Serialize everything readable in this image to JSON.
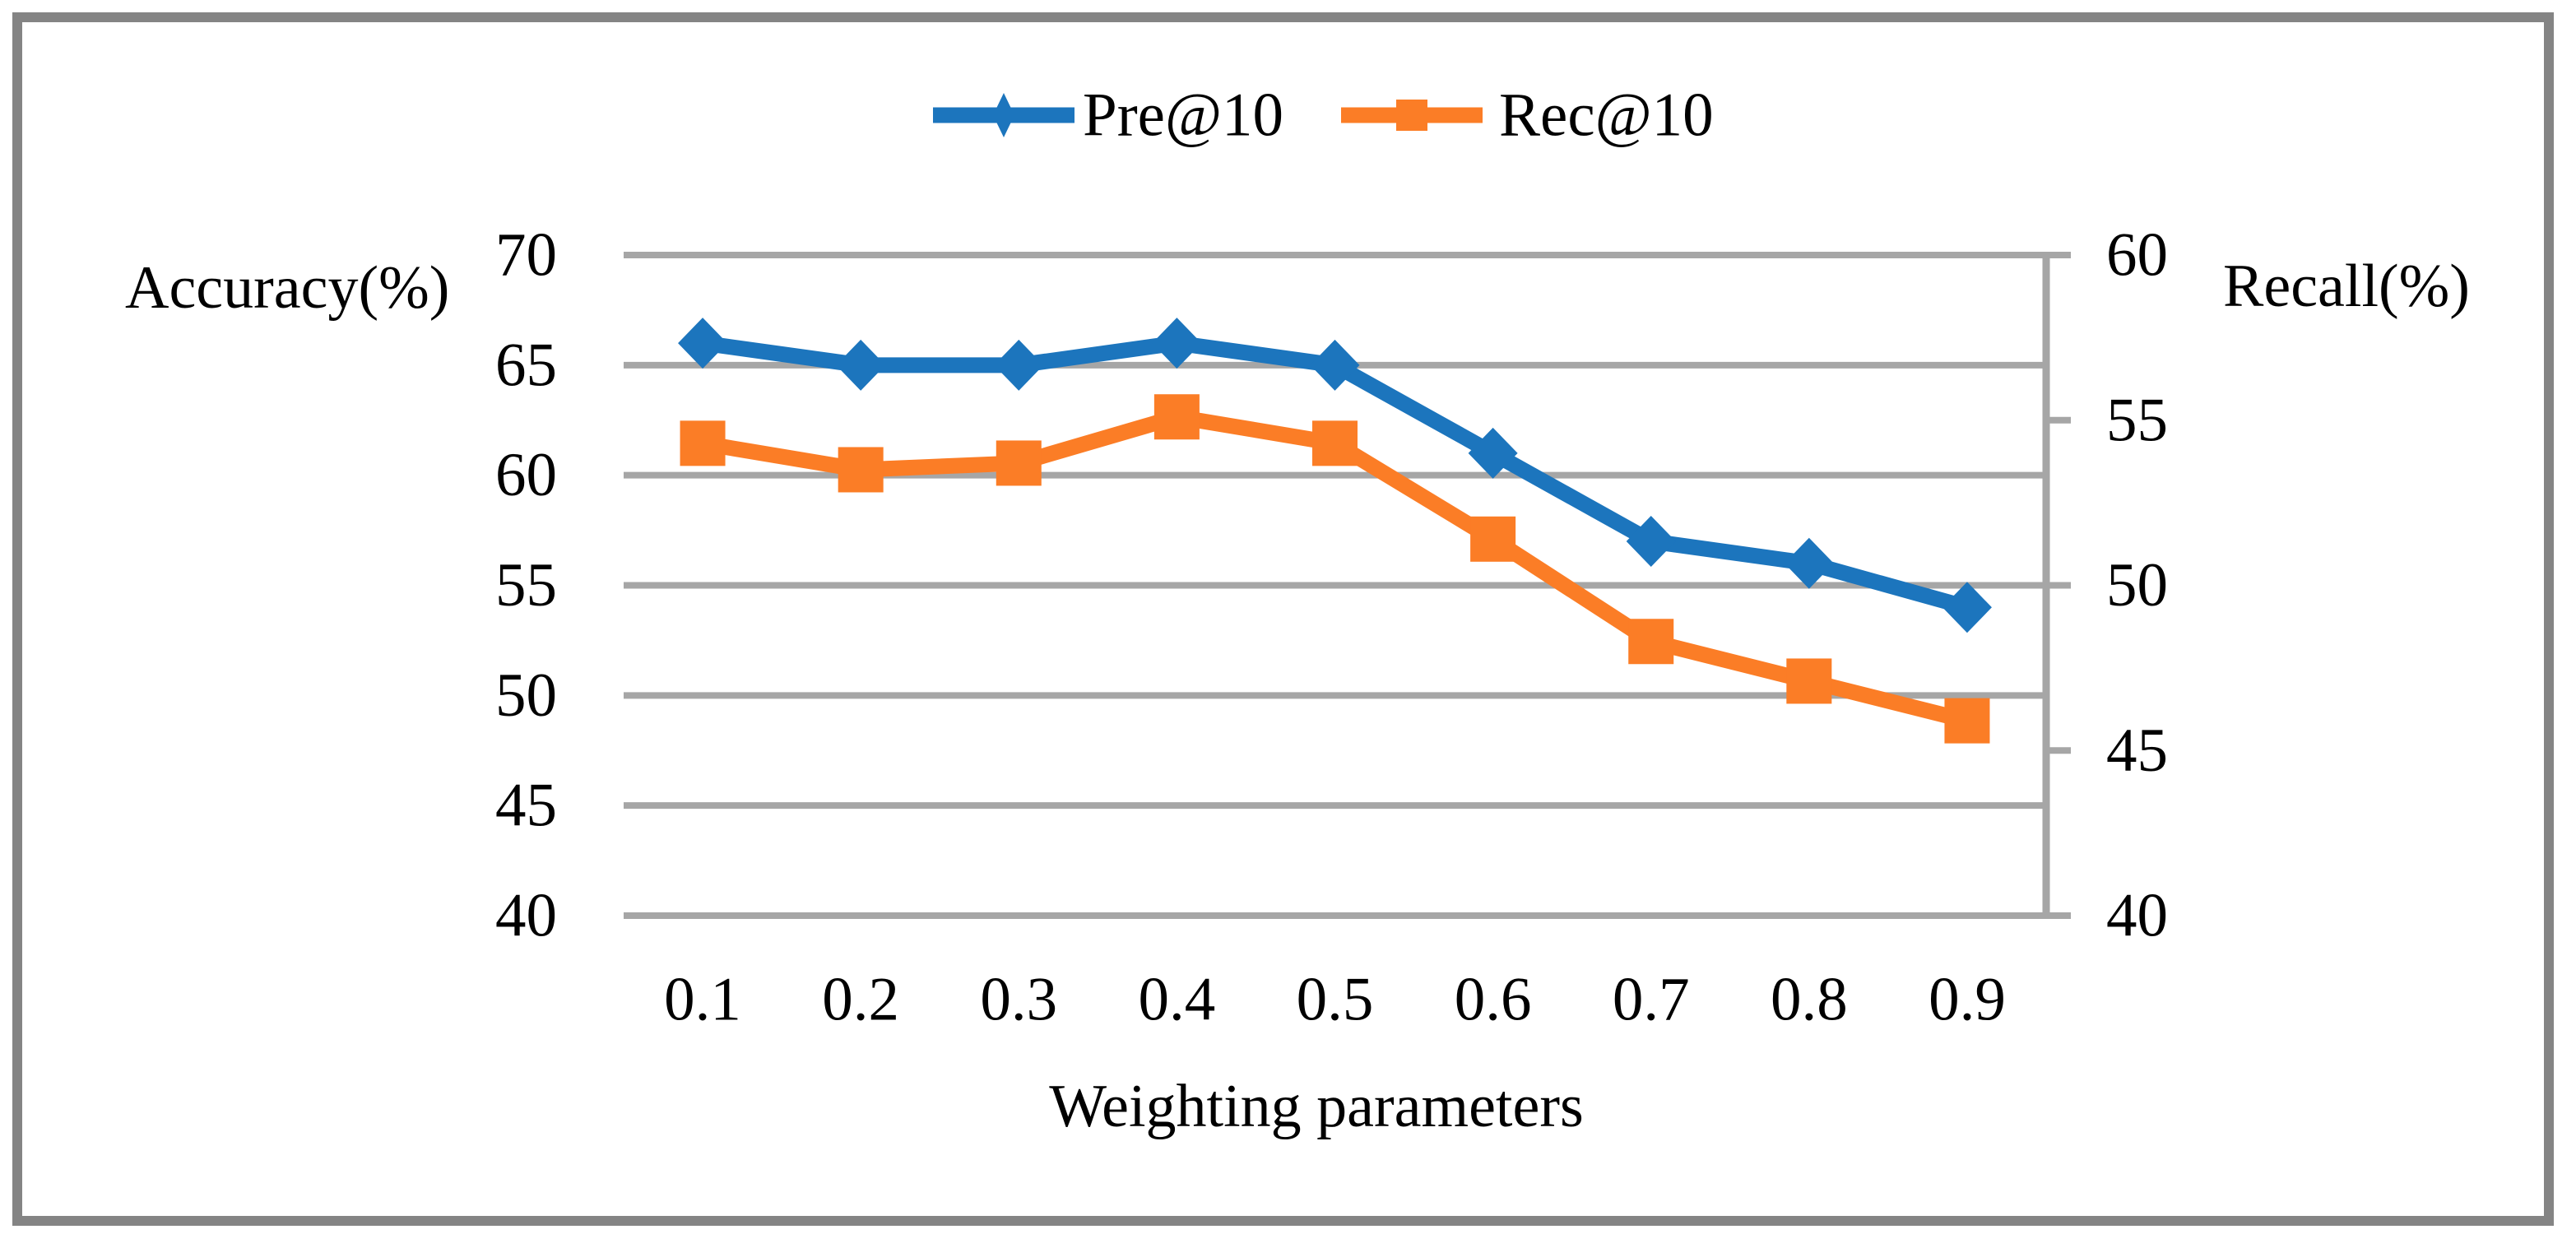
{
  "figure": {
    "type": "dual-axis line chart figure",
    "background": "#ffffff",
    "border_color": "#848484"
  },
  "chart_data": {
    "type": "line",
    "title": "",
    "xlabel": "Weighting parameters",
    "categories": [
      "0.1",
      "0.2",
      "0.3",
      "0.4",
      "0.5",
      "0.6",
      "0.7",
      "0.8",
      "0.9"
    ],
    "left_axis": {
      "label": "Accuracy(%)",
      "ticks": [
        70,
        65,
        60,
        55,
        50,
        45,
        40
      ],
      "range": [
        40,
        70
      ]
    },
    "right_axis": {
      "label": "Recall(%)",
      "ticks": [
        60,
        55,
        50,
        45,
        40
      ],
      "range": [
        40,
        60
      ]
    },
    "series": [
      {
        "name": "Pre@10",
        "axis": "left",
        "marker": "diamond",
        "color": "#1C75BD",
        "values": [
          66,
          65,
          65,
          66,
          65,
          61,
          57,
          56,
          54
        ]
      },
      {
        "name": "Rec@10",
        "axis": "right",
        "marker": "square",
        "color": "#FB7D26",
        "values": [
          54.3,
          53.5,
          53.7,
          55.1,
          54.3,
          51.4,
          48.3,
          47.1,
          45.9
        ]
      }
    ],
    "grid": "horizontal",
    "grid_color": "#A6A6A6",
    "legend_position": "top-center"
  }
}
